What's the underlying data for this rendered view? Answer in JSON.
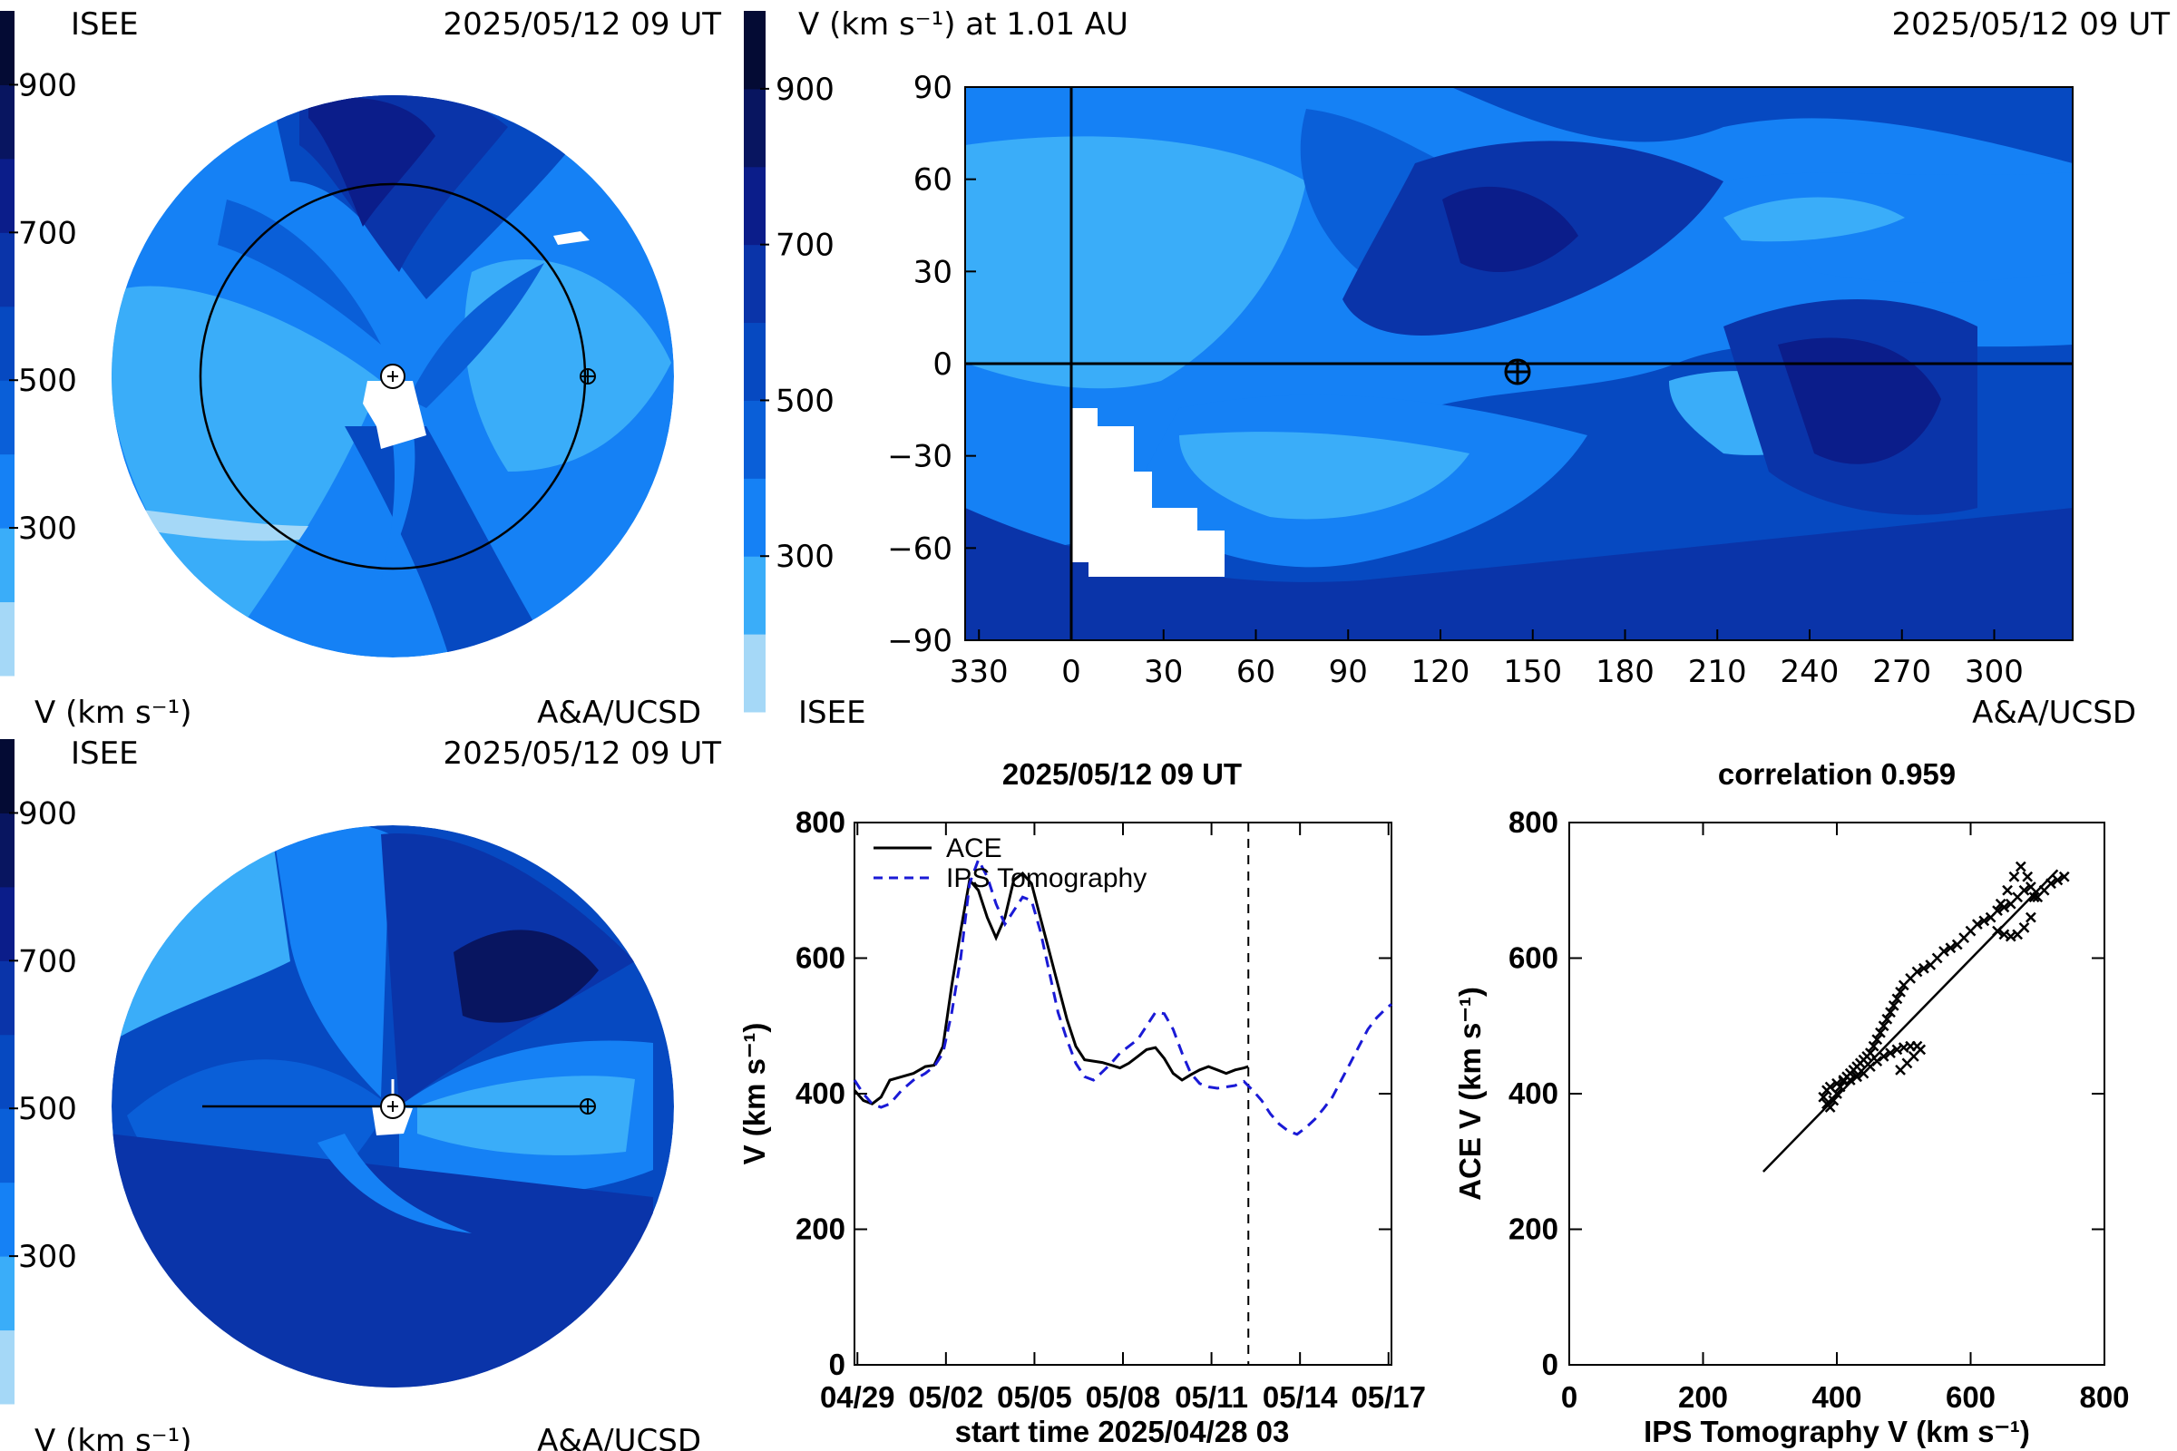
{
  "colors": {
    "bins": [
      "#a5d8f7",
      "#3aadf9",
      "#1581f5",
      "#0a5fd8",
      "#0649c1",
      "#0a34a9",
      "#0b1d8a",
      "#081560",
      "#040b34"
    ],
    "black": "#000000",
    "dashed_series": "#1a1ad6"
  },
  "colorbar": {
    "ticks": [
      "900",
      "700",
      "500",
      "300"
    ],
    "tick_values": [
      900,
      700,
      500,
      300
    ],
    "range": [
      100,
      1000
    ]
  },
  "panel_polar_top": {
    "source_label": "ISEE",
    "timestamp": "2025/05/12 09 UT",
    "unit_label": "V (km s⁻¹)",
    "credit": "A&A/UCSD"
  },
  "panel_polar_bottom": {
    "source_label": "ISEE",
    "timestamp": "2025/05/12 09 UT",
    "unit_label": "V (km s⁻¹)",
    "credit": "A&A/UCSD"
  },
  "panel_map": {
    "title": "V (km s⁻¹) at 1.01 AU",
    "timestamp": "2025/05/12 09 UT",
    "source_label": "ISEE",
    "credit": "A&A/UCSD"
  },
  "chart_data": [
    {
      "type": "line",
      "title": "2025/05/12 09 UT",
      "xlabel": "start time 2025/04/28 03",
      "ylabel": "V (km s⁻¹)",
      "ylim": [
        0,
        800
      ],
      "y_ticks": [
        "0",
        "200",
        "400",
        "600",
        "800"
      ],
      "x_ticks": [
        "04/29",
        "05/02",
        "05/05",
        "05/08",
        "05/11",
        "05/14",
        "05/17"
      ],
      "x_tick_days": [
        1,
        4,
        7,
        10,
        13,
        16,
        19
      ],
      "xlim_days": [
        0.9,
        19.1
      ],
      "current_time_day": 14.25,
      "series": [
        {
          "name": "ACE",
          "style": "solid",
          "days": [
            0.9,
            1.2,
            1.5,
            1.8,
            2.1,
            2.5,
            2.9,
            3.3,
            3.6,
            3.9,
            4.2,
            4.5,
            4.8,
            5.1,
            5.4,
            5.7,
            6.0,
            6.3,
            6.6,
            6.9,
            7.2,
            7.5,
            7.8,
            8.1,
            8.4,
            8.7,
            9.0,
            9.3,
            9.6,
            9.9,
            10.2,
            10.5,
            10.8,
            11.1,
            11.4,
            11.7,
            12.0,
            12.3,
            12.6,
            12.9,
            13.2,
            13.5,
            13.8,
            14.1,
            14.25
          ],
          "values": [
            405,
            390,
            385,
            395,
            420,
            425,
            430,
            440,
            442,
            470,
            560,
            640,
            715,
            700,
            660,
            630,
            660,
            715,
            725,
            710,
            660,
            610,
            560,
            510,
            470,
            450,
            448,
            446,
            442,
            438,
            445,
            455,
            465,
            468,
            452,
            430,
            420,
            428,
            435,
            440,
            435,
            430,
            435,
            438,
            440
          ]
        },
        {
          "name": "IPS Tomography",
          "style": "dashed",
          "days": [
            0.9,
            1.2,
            1.5,
            1.8,
            2.1,
            2.5,
            2.9,
            3.3,
            3.6,
            3.9,
            4.2,
            4.5,
            4.8,
            5.1,
            5.4,
            5.7,
            6.0,
            6.3,
            6.6,
            6.9,
            7.2,
            7.5,
            7.8,
            8.1,
            8.4,
            8.7,
            9.0,
            9.3,
            9.6,
            9.9,
            10.2,
            10.5,
            10.8,
            11.1,
            11.4,
            11.7,
            12.0,
            12.3,
            12.6,
            12.9,
            13.2,
            13.5,
            13.8,
            14.1,
            14.4,
            14.7,
            15.0,
            15.3,
            15.6,
            15.9,
            16.2,
            16.5,
            16.8,
            17.1,
            17.4,
            17.7,
            18.0,
            18.3,
            18.6,
            18.9,
            19.1
          ],
          "values": [
            420,
            400,
            385,
            380,
            385,
            405,
            420,
            430,
            440,
            460,
            520,
            600,
            710,
            745,
            720,
            680,
            650,
            670,
            690,
            685,
            640,
            580,
            520,
            480,
            445,
            425,
            420,
            432,
            445,
            460,
            470,
            480,
            500,
            520,
            518,
            495,
            460,
            430,
            415,
            410,
            408,
            410,
            412,
            418,
            405,
            390,
            370,
            355,
            345,
            340,
            350,
            362,
            378,
            395,
            420,
            445,
            470,
            495,
            512,
            525,
            532
          ]
        }
      ]
    },
    {
      "type": "scatter",
      "title": "correlation 0.959",
      "xlabel": "IPS Tomography V (km s⁻¹)",
      "ylabel": "ACE V (km s⁻¹)",
      "xlim": [
        0,
        800
      ],
      "ylim": [
        0,
        800
      ],
      "x_ticks": [
        "0",
        "200",
        "400",
        "600",
        "800"
      ],
      "y_ticks": [
        "0",
        "200",
        "400",
        "600",
        "800"
      ],
      "fit_line": {
        "x": [
          290,
          730
        ],
        "y": [
          285,
          730
        ]
      },
      "points": {
        "x": [
          380,
          385,
          390,
          395,
          400,
          405,
          410,
          415,
          420,
          425,
          430,
          435,
          440,
          445,
          450,
          455,
          460,
          465,
          470,
          475,
          480,
          485,
          490,
          495,
          500,
          510,
          520,
          530,
          540,
          550,
          560,
          570,
          580,
          590,
          600,
          610,
          620,
          630,
          640,
          650,
          660,
          670,
          680,
          690,
          700,
          710,
          720,
          730,
          740,
          385,
          390,
          400,
          410,
          420,
          430,
          440,
          450,
          460,
          470,
          480,
          490,
          500,
          510,
          520,
          525,
          515,
          505,
          495,
          640,
          650,
          660,
          670,
          680,
          690,
          695,
          685,
          675,
          665,
          655,
          645
        ],
        "y": [
          395,
          385,
          380,
          390,
          400,
          410,
          420,
          425,
          430,
          435,
          440,
          445,
          450,
          455,
          460,
          470,
          480,
          490,
          500,
          510,
          520,
          530,
          540,
          550,
          560,
          570,
          580,
          585,
          590,
          600,
          610,
          615,
          620,
          630,
          640,
          650,
          655,
          660,
          670,
          675,
          680,
          690,
          700,
          705,
          690,
          700,
          710,
          715,
          720,
          405,
          410,
          415,
          418,
          420,
          425,
          430,
          440,
          448,
          455,
          460,
          465,
          468,
          470,
          470,
          465,
          455,
          445,
          435,
          640,
          635,
          632,
          635,
          645,
          660,
          690,
          720,
          735,
          720,
          700,
          680
        ]
      }
    }
  ]
}
